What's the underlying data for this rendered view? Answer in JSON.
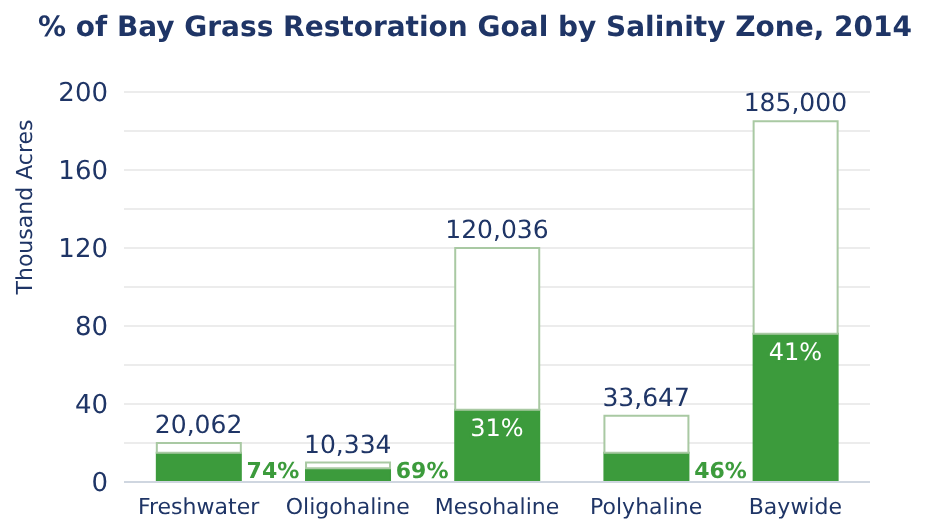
{
  "chart_data": {
    "type": "bar",
    "title": "% of Bay Grass Restoration Goal by Salinity Zone, 2014",
    "ylabel": "Thousand Acres",
    "categories": [
      "Freshwater",
      "Oligohaline",
      "Mesohaline",
      "Polyhaline",
      "Baywide"
    ],
    "stacked": true,
    "series": [
      {
        "color": "#3c9b3c",
        "values": [
          15,
          7,
          37,
          15,
          76
        ]
      },
      {
        "color": "#ffffff",
        "values": [
          5,
          3,
          83,
          19,
          109
        ]
      }
    ],
    "annotations": [
      {
        "text": "74%",
        "x": "Freshwater",
        "y": 15
      },
      {
        "text": "69%",
        "x": "Oligohaline",
        "y": 7
      },
      {
        "text": "31%",
        "x": "Mesohaline",
        "y": 37
      },
      {
        "text": "46%",
        "x": "Polyhaline",
        "y": 15
      },
      {
        "text": "41%",
        "x": "Baywide",
        "y": 76
      },
      {
        "text": "20,062",
        "x": "Freshwater",
        "y": 20
      },
      {
        "text": "10,334",
        "x": "Oligohaline",
        "y": 10
      },
      {
        "text": "120,036",
        "x": "Mesohaline",
        "y": 120
      },
      {
        "text": "33,647",
        "x": "Polyhaline",
        "y": 34
      },
      {
        "text": "185,000",
        "x": "Baywide",
        "y": 185
      }
    ],
    "ylim": [
      0,
      200
    ],
    "yticks": [
      0,
      {
        "value": 20,
        "label": null
      },
      40,
      {
        "value": 60,
        "label": null
      },
      80,
      {
        "value": 100,
        "label": null
      },
      120,
      {
        "value": 140,
        "label": null
      },
      160,
      {
        "value": 180,
        "label": null
      },
      200
    ],
    "grid": "y",
    "legend": false
  }
}
